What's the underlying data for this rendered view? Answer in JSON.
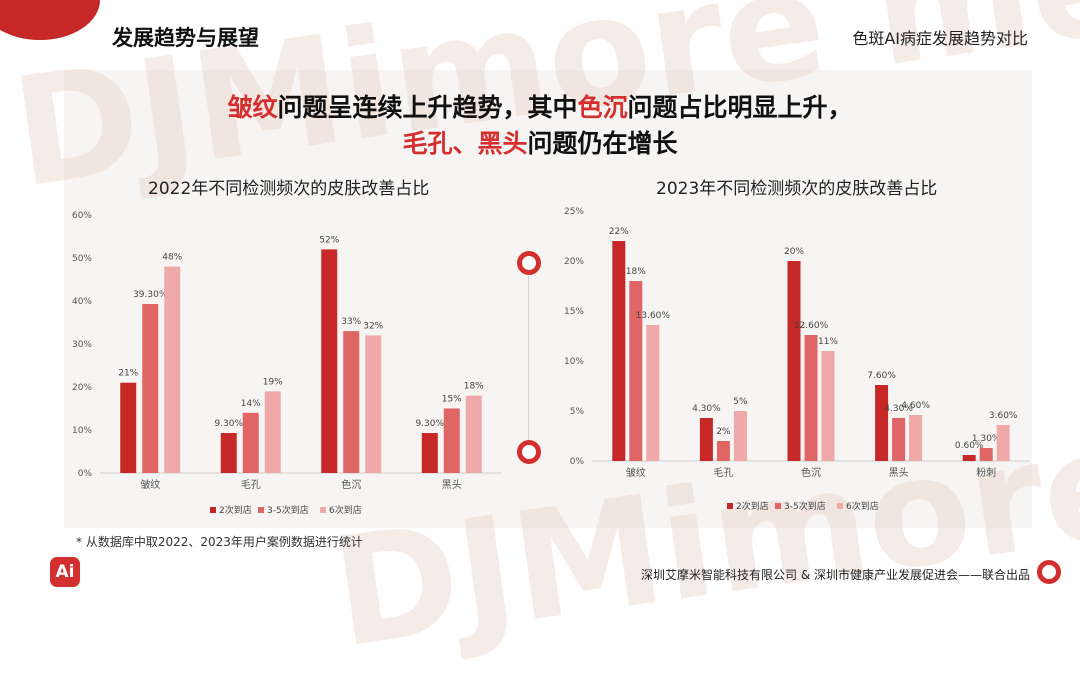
{
  "header": {
    "title": "发展趋势与展望",
    "right_title": "色斑AI病症发展趋势对比"
  },
  "headline": {
    "line1": [
      {
        "text": "皱纹",
        "red": true
      },
      {
        "text": "问题呈连续上升趋势，其中",
        "red": false
      },
      {
        "text": "色沉",
        "red": true
      },
      {
        "text": "问题占比明显上升，",
        "red": false
      }
    ],
    "line2": [
      {
        "text": "毛孔、黑头",
        "red": true
      },
      {
        "text": "问题仍在增长",
        "red": false
      }
    ]
  },
  "chart_titles": {
    "left": "2022年不同检测频次的皮肤改善占比",
    "right": "2023年不同检测频次的皮肤改善占比"
  },
  "footnote": "* 从数据库中取2022、2023年用户案例数据进行统计",
  "footer": "深圳艾摩米智能科技有限公司 & 深圳市健康产业发展促进会——联合出品",
  "logo_text": "Ai",
  "watermark_text": "DJMimore me",
  "colors": {
    "series1": "#c62828",
    "series2": "#e06666",
    "series3": "#efa9a9",
    "accent": "#d32f2f"
  },
  "chart_data": [
    {
      "type": "bar",
      "title": "2022年不同检测频次的皮肤改善占比",
      "categories": [
        "皱纹",
        "毛孔",
        "色沉",
        "黑头"
      ],
      "ylim": [
        0,
        60
      ],
      "yticks": [
        "0%",
        "10%",
        "20%",
        "30%",
        "40%",
        "50%",
        "60%"
      ],
      "grid": false,
      "legend_position": "bottom",
      "series": [
        {
          "name": "2次到店",
          "values": [
            21,
            9.3,
            52,
            9.3
          ],
          "labels": [
            "21%",
            "9.30%",
            "52%",
            "9.30%"
          ]
        },
        {
          "name": "3-5次到店",
          "values": [
            39.3,
            14,
            33,
            15
          ],
          "labels": [
            "39.30%",
            "14%",
            "33%",
            "15%"
          ]
        },
        {
          "name": "6次到店",
          "values": [
            48,
            19,
            32,
            18
          ],
          "labels": [
            "48%",
            "19%",
            "32%",
            "18%"
          ]
        }
      ]
    },
    {
      "type": "bar",
      "title": "2023年不同检测频次的皮肤改善占比",
      "categories": [
        "皱纹",
        "毛孔",
        "色沉",
        "黑头",
        "粉刺"
      ],
      "ylim": [
        0,
        25
      ],
      "yticks": [
        "0%",
        "5%",
        "10%",
        "15%",
        "20%",
        "25%"
      ],
      "grid": false,
      "legend_position": "bottom",
      "series": [
        {
          "name": "2次到店",
          "values": [
            22,
            4.3,
            20,
            7.6,
            0.6
          ],
          "labels": [
            "22%",
            "4.30%",
            "20%",
            "7.60%",
            "0.60%"
          ]
        },
        {
          "name": "3-5次到店",
          "values": [
            18,
            2,
            12.6,
            4.3,
            1.3
          ],
          "labels": [
            "18%",
            "2%",
            "12.60%",
            "4.30%",
            "1.30%"
          ]
        },
        {
          "name": "6次到店",
          "values": [
            13.6,
            5,
            11,
            4.6,
            3.6
          ],
          "labels": [
            "13.60%",
            "5%",
            "11%",
            "4.60%",
            "3.60%"
          ]
        }
      ]
    }
  ]
}
